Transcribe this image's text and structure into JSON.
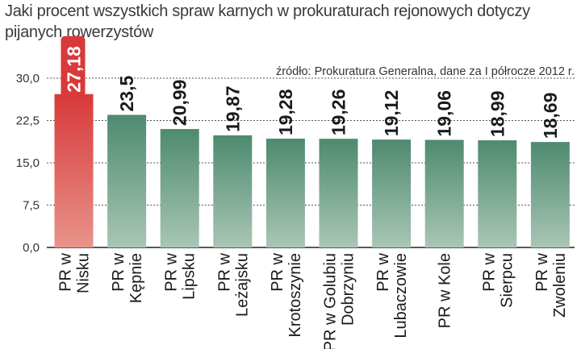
{
  "title": "Jaki procent wszystkich spraw karnych w prokuraturach rejonowych dotyczy pijanych rowerzystów",
  "source": "źródło: Prokuratura Generalna, dane za I półrocze 2012 r.",
  "colors": {
    "highlight_top": "#d8393a",
    "highlight_bottom": "#e8938a",
    "bar_top": "#4e8a6f",
    "bar_bottom": "#a9c6b5"
  },
  "chart_data": {
    "type": "bar",
    "categories": [
      [
        "PR w",
        "Nisku"
      ],
      [
        "PR w",
        "Kępnie"
      ],
      [
        "PR w",
        "Lipsku"
      ],
      [
        "PR w",
        "Leżajsku"
      ],
      [
        "PR w",
        "Krotoszynie"
      ],
      [
        "PR w Golubiu",
        "Dobrzyniu"
      ],
      [
        "PR w",
        "Lubaczowie"
      ],
      [
        "PR w Kole"
      ],
      [
        "PR w",
        "Sierpcu"
      ],
      [
        "PR w",
        "Zwoleniu"
      ]
    ],
    "values": [
      27.18,
      23.5,
      20.99,
      19.87,
      19.28,
      19.26,
      19.12,
      19.06,
      18.99,
      18.69
    ],
    "value_labels": [
      "27,18",
      "23,5",
      "20,99",
      "19,87",
      "19,28",
      "19,26",
      "19,12",
      "19,06",
      "18,99",
      "18,69"
    ],
    "highlight_index": 0,
    "yticks": [
      0,
      7.5,
      15,
      22.5,
      30
    ],
    "ytick_labels": [
      "0,0",
      "7,5",
      "15,0",
      "22,5",
      "30,0"
    ],
    "ylim": [
      0,
      30
    ],
    "grid": true
  }
}
